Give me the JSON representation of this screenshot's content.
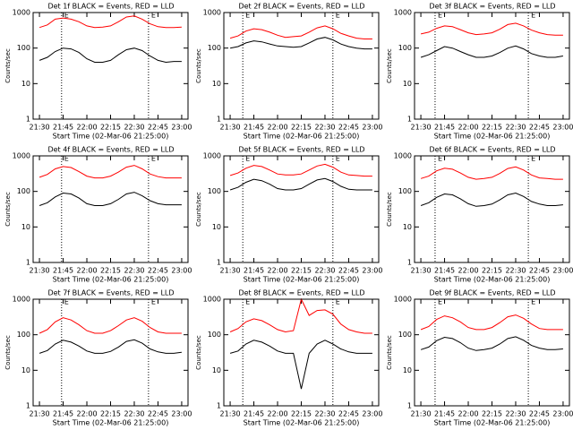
{
  "chart_data": [
    {
      "type": "line",
      "title": "Det 1f BLACK = Events, RED = LLD",
      "ylabel": "Counts/sec",
      "xlabel": "Start Time (02-Mar-06 21:25:00)",
      "log_y": true,
      "ylim": [
        1,
        1000
      ],
      "yticks": [
        1,
        10,
        100,
        1000
      ],
      "xlim": [
        "21:26",
        "23:04"
      ],
      "xticks": [
        "21:30",
        "21:45",
        "22:00",
        "22:15",
        "22:30",
        "22:45",
        "23:00"
      ],
      "markers": [
        "21:44",
        "22:39"
      ],
      "marker_labels": [
        "E",
        "E"
      ],
      "x": [
        "21:30",
        "21:35",
        "21:40",
        "21:45",
        "21:50",
        "21:55",
        "22:00",
        "22:05",
        "22:10",
        "22:15",
        "22:20",
        "22:25",
        "22:30",
        "22:35",
        "22:40",
        "22:45",
        "22:50",
        "22:55",
        "23:00"
      ],
      "series": [
        {
          "color": "#ff0000",
          "values": [
            380,
            450,
            650,
            700,
            650,
            550,
            420,
            380,
            390,
            420,
            550,
            750,
            800,
            650,
            480,
            400,
            380,
            380,
            390
          ]
        },
        {
          "color": "#000000",
          "values": [
            45,
            55,
            80,
            100,
            95,
            75,
            50,
            40,
            40,
            45,
            65,
            90,
            100,
            85,
            60,
            45,
            40,
            42,
            42
          ]
        }
      ]
    },
    {
      "type": "line",
      "title": "Det 2f BLACK = Events, RED = LLD",
      "ylabel": "Counts/sec",
      "xlabel": "Start Time (02-Mar-06 21:25:00)",
      "log_y": true,
      "ylim": [
        1,
        1000
      ],
      "yticks": [
        1,
        10,
        100,
        1000
      ],
      "xlim": [
        "21:26",
        "23:04"
      ],
      "xticks": [
        "21:30",
        "21:45",
        "22:00",
        "22:15",
        "22:30",
        "22:45",
        "23:00"
      ],
      "markers": [
        "21:38",
        "22:35"
      ],
      "marker_labels": [
        "E",
        "E"
      ],
      "x": [
        "21:30",
        "21:35",
        "21:40",
        "21:45",
        "21:50",
        "21:55",
        "22:00",
        "22:05",
        "22:10",
        "22:15",
        "22:20",
        "22:25",
        "22:30",
        "22:35",
        "22:40",
        "22:45",
        "22:50",
        "22:55",
        "23:00"
      ],
      "series": [
        {
          "color": "#ff0000",
          "values": [
            190,
            220,
            300,
            350,
            330,
            280,
            230,
            200,
            210,
            220,
            280,
            370,
            420,
            350,
            260,
            220,
            190,
            180,
            180
          ]
        },
        {
          "color": "#000000",
          "values": [
            100,
            110,
            140,
            160,
            150,
            130,
            115,
            110,
            105,
            110,
            140,
            180,
            200,
            170,
            130,
            110,
            100,
            95,
            95
          ]
        }
      ]
    },
    {
      "type": "line",
      "title": "Det 3f BLACK = Events, RED = LLD",
      "ylabel": "Counts/sec",
      "xlabel": "Start Time (02-Mar-06 21:25:00)",
      "log_y": true,
      "ylim": [
        1,
        1000
      ],
      "yticks": [
        1,
        10,
        100,
        1000
      ],
      "xlim": [
        "21:26",
        "23:04"
      ],
      "xticks": [
        "21:30",
        "21:45",
        "22:00",
        "22:15",
        "22:30",
        "22:45",
        "23:00"
      ],
      "markers": [
        "21:39",
        "22:38"
      ],
      "marker_labels": [
        "E",
        "E"
      ],
      "x": [
        "21:30",
        "21:35",
        "21:40",
        "21:45",
        "21:50",
        "21:55",
        "22:00",
        "22:05",
        "22:10",
        "22:15",
        "22:20",
        "22:25",
        "22:30",
        "22:35",
        "22:40",
        "22:45",
        "22:50",
        "22:55",
        "23:00"
      ],
      "series": [
        {
          "color": "#ff0000",
          "values": [
            250,
            280,
            360,
            420,
            400,
            330,
            270,
            240,
            250,
            270,
            340,
            460,
            500,
            420,
            320,
            270,
            240,
            230,
            230
          ]
        },
        {
          "color": "#000000",
          "values": [
            55,
            65,
            85,
            110,
            100,
            80,
            65,
            55,
            55,
            60,
            75,
            100,
            115,
            95,
            70,
            60,
            55,
            55,
            60
          ]
        }
      ]
    },
    {
      "type": "line",
      "title": "Det 4f BLACK = Events, RED = LLD",
      "ylabel": "Counts/sec",
      "xlabel": "Start Time (02-Mar-06 21:25:00)",
      "log_y": true,
      "ylim": [
        1,
        1000
      ],
      "yticks": [
        1,
        10,
        100,
        1000
      ],
      "xlim": [
        "21:26",
        "23:04"
      ],
      "xticks": [
        "21:30",
        "21:45",
        "22:00",
        "22:15",
        "22:30",
        "22:45",
        "23:00"
      ],
      "markers": [
        "21:44",
        "22:39"
      ],
      "marker_labels": [
        "E",
        "E"
      ],
      "x": [
        "21:30",
        "21:35",
        "21:40",
        "21:45",
        "21:50",
        "21:55",
        "22:00",
        "22:05",
        "22:10",
        "22:15",
        "22:20",
        "22:25",
        "22:30",
        "22:35",
        "22:40",
        "22:45",
        "22:50",
        "22:55",
        "23:00"
      ],
      "series": [
        {
          "color": "#ff0000",
          "values": [
            250,
            300,
            430,
            500,
            470,
            360,
            270,
            240,
            240,
            270,
            350,
            480,
            540,
            430,
            310,
            260,
            240,
            240,
            240
          ]
        },
        {
          "color": "#000000",
          "values": [
            40,
            48,
            70,
            90,
            85,
            65,
            45,
            40,
            40,
            45,
            60,
            85,
            95,
            75,
            55,
            45,
            42,
            42,
            42
          ]
        }
      ]
    },
    {
      "type": "line",
      "title": "Det 5f BLACK = Events, RED = LLD",
      "ylabel": "Counts/sec",
      "xlabel": "Start Time (02-Mar-06 21:25:00)",
      "log_y": true,
      "ylim": [
        1,
        1000
      ],
      "yticks": [
        1,
        10,
        100,
        1000
      ],
      "xlim": [
        "21:26",
        "23:04"
      ],
      "xticks": [
        "21:30",
        "21:45",
        "22:00",
        "22:15",
        "22:30",
        "22:45",
        "23:00"
      ],
      "markers": [
        "21:38",
        "22:35"
      ],
      "marker_labels": [
        "E",
        "E"
      ],
      "x": [
        "21:30",
        "21:35",
        "21:40",
        "21:45",
        "21:50",
        "21:55",
        "22:00",
        "22:05",
        "22:10",
        "22:15",
        "22:20",
        "22:25",
        "22:30",
        "22:35",
        "22:40",
        "22:45",
        "22:50",
        "22:55",
        "23:00"
      ],
      "series": [
        {
          "color": "#ff0000",
          "values": [
            280,
            330,
            450,
            540,
            500,
            400,
            310,
            290,
            290,
            310,
            400,
            520,
            580,
            480,
            350,
            290,
            280,
            270,
            270
          ]
        },
        {
          "color": "#000000",
          "values": [
            110,
            130,
            180,
            220,
            200,
            160,
            120,
            110,
            110,
            120,
            160,
            210,
            230,
            190,
            140,
            115,
            110,
            110,
            110
          ]
        }
      ]
    },
    {
      "type": "line",
      "title": "Det 6f BLACK = Events, RED = LLD",
      "ylabel": "Counts/sec",
      "xlabel": "Start Time (02-Mar-06 21:25:00)",
      "log_y": true,
      "ylim": [
        1,
        1000
      ],
      "yticks": [
        1,
        10,
        100,
        1000
      ],
      "xlim": [
        "21:26",
        "23:04"
      ],
      "xticks": [
        "21:30",
        "21:45",
        "22:00",
        "22:15",
        "22:30",
        "22:45",
        "23:00"
      ],
      "markers": [
        "21:39",
        "22:38"
      ],
      "marker_labels": [
        "E",
        "E"
      ],
      "x": [
        "21:30",
        "21:35",
        "21:40",
        "21:45",
        "21:50",
        "21:55",
        "22:00",
        "22:05",
        "22:10",
        "22:15",
        "22:20",
        "22:25",
        "22:30",
        "22:35",
        "22:40",
        "22:45",
        "22:50",
        "22:55",
        "23:00"
      ],
      "series": [
        {
          "color": "#ff0000",
          "values": [
            230,
            270,
            380,
            450,
            420,
            330,
            250,
            220,
            230,
            250,
            320,
            440,
            490,
            400,
            290,
            240,
            230,
            220,
            220
          ]
        },
        {
          "color": "#000000",
          "values": [
            40,
            48,
            68,
            85,
            80,
            62,
            45,
            38,
            40,
            44,
            58,
            80,
            90,
            72,
            52,
            44,
            40,
            40,
            42
          ]
        }
      ]
    },
    {
      "type": "line",
      "title": "Det 7f BLACK = Events, RED = LLD",
      "ylabel": "Counts/sec",
      "xlabel": "Start Time (02-Mar-06 21:25:00)",
      "log_y": true,
      "ylim": [
        1,
        1000
      ],
      "yticks": [
        1,
        10,
        100,
        1000
      ],
      "xlim": [
        "21:26",
        "23:04"
      ],
      "xticks": [
        "21:30",
        "21:45",
        "22:00",
        "22:15",
        "22:30",
        "22:45",
        "23:00"
      ],
      "markers": [
        "21:44",
        "22:39"
      ],
      "marker_labels": [
        "E",
        "E"
      ],
      "x": [
        "21:30",
        "21:35",
        "21:40",
        "21:45",
        "21:50",
        "21:55",
        "22:00",
        "22:05",
        "22:10",
        "22:15",
        "22:20",
        "22:25",
        "22:30",
        "22:35",
        "22:40",
        "22:45",
        "22:50",
        "22:55",
        "23:00"
      ],
      "series": [
        {
          "color": "#ff0000",
          "values": [
            110,
            140,
            230,
            300,
            260,
            190,
            130,
            110,
            110,
            130,
            180,
            260,
            300,
            240,
            160,
            120,
            110,
            110,
            110
          ]
        },
        {
          "color": "#000000",
          "values": [
            30,
            36,
            55,
            70,
            62,
            48,
            35,
            30,
            30,
            34,
            45,
            65,
            72,
            58,
            40,
            33,
            30,
            30,
            32
          ]
        }
      ]
    },
    {
      "type": "line",
      "title": "Det 8f BLACK = Events, RED = LLD",
      "ylabel": "Counts/sec",
      "xlabel": "Start Time (02-Mar-06 21:25:00)",
      "log_y": true,
      "ylim": [
        1,
        1000
      ],
      "yticks": [
        1,
        10,
        100,
        1000
      ],
      "xlim": [
        "21:26",
        "23:04"
      ],
      "xticks": [
        "21:30",
        "21:45",
        "22:00",
        "22:15",
        "22:30",
        "22:45",
        "23:00"
      ],
      "markers": [
        "21:38",
        "22:35"
      ],
      "marker_labels": [
        "E",
        "E"
      ],
      "x": [
        "21:30",
        "21:35",
        "21:40",
        "21:45",
        "21:50",
        "21:55",
        "22:00",
        "22:05",
        "22:10",
        "22:15",
        "22:20",
        "22:25",
        "22:30",
        "22:35",
        "22:40",
        "22:45",
        "22:50",
        "22:55",
        "23:00"
      ],
      "series": [
        {
          "color": "#ff0000",
          "values": [
            120,
            150,
            230,
            280,
            250,
            190,
            140,
            120,
            130,
            1000,
            350,
            480,
            500,
            380,
            200,
            140,
            120,
            110,
            110
          ]
        },
        {
          "color": "#000000",
          "values": [
            30,
            35,
            55,
            70,
            62,
            48,
            35,
            30,
            30,
            3,
            30,
            55,
            70,
            55,
            40,
            33,
            30,
            30,
            30
          ]
        }
      ]
    },
    {
      "type": "line",
      "title": "Det 9f BLACK = Events, RED = LLD",
      "ylabel": "Counts/sec",
      "xlabel": "Start Time (02-Mar-06 21:25:00)",
      "log_y": true,
      "ylim": [
        1,
        1000
      ],
      "yticks": [
        1,
        10,
        100,
        1000
      ],
      "xlim": [
        "21:26",
        "23:04"
      ],
      "xticks": [
        "21:30",
        "21:45",
        "22:00",
        "22:15",
        "22:30",
        "22:45",
        "23:00"
      ],
      "markers": [
        "21:39",
        "22:38"
      ],
      "marker_labels": [
        "E",
        "E"
      ],
      "x": [
        "21:30",
        "21:35",
        "21:40",
        "21:45",
        "21:50",
        "21:55",
        "22:00",
        "22:05",
        "22:10",
        "22:15",
        "22:20",
        "22:25",
        "22:30",
        "22:35",
        "22:40",
        "22:45",
        "22:50",
        "22:55",
        "23:00"
      ],
      "series": [
        {
          "color": "#ff0000",
          "values": [
            140,
            170,
            270,
            340,
            300,
            230,
            160,
            140,
            140,
            160,
            220,
            320,
            360,
            290,
            200,
            150,
            140,
            140,
            140
          ]
        },
        {
          "color": "#000000",
          "values": [
            38,
            45,
            68,
            85,
            78,
            60,
            42,
            36,
            38,
            42,
            55,
            78,
            88,
            70,
            50,
            42,
            38,
            38,
            40
          ]
        }
      ]
    }
  ]
}
